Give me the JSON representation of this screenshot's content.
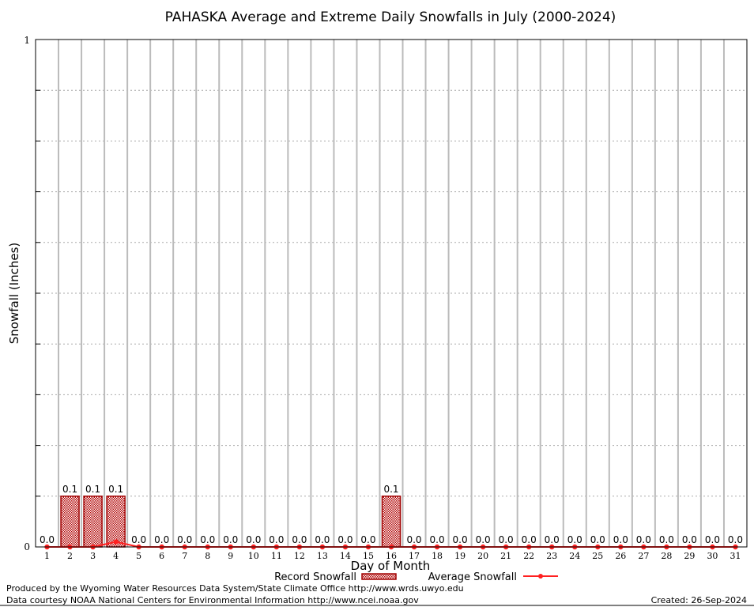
{
  "chart_data": {
    "type": "bar",
    "title": "PAHASKA Average and Extreme Daily Snowfalls in July (2000-2024)",
    "xlabel": "Day of Month",
    "ylabel": "Snowfall (Inches)",
    "ylim": [
      0,
      1
    ],
    "ytick_labels": [
      "0",
      "1"
    ],
    "grid": true,
    "categories": [
      "1",
      "2",
      "3",
      "4",
      "5",
      "6",
      "7",
      "8",
      "9",
      "10",
      "11",
      "12",
      "13",
      "14",
      "15",
      "16",
      "17",
      "18",
      "19",
      "20",
      "21",
      "22",
      "23",
      "24",
      "25",
      "26",
      "27",
      "28",
      "29",
      "30",
      "31"
    ],
    "series": [
      {
        "name": "Record Snowfall",
        "type": "bar",
        "color": "#a00000",
        "values": [
          0,
          0.1,
          0.1,
          0.1,
          0,
          0,
          0,
          0,
          0,
          0,
          0,
          0,
          0,
          0,
          0,
          0.1,
          0,
          0,
          0,
          0,
          0,
          0,
          0,
          0,
          0,
          0,
          0,
          0,
          0,
          0,
          0
        ],
        "labels": [
          "0.0",
          "0.1",
          "0.1",
          "0.1",
          "0.0",
          "0.0",
          "0.0",
          "0.0",
          "0.0",
          "0.0",
          "0.0",
          "0.0",
          "0.0",
          "0.0",
          "0.0",
          "0.1",
          "0.0",
          "0.0",
          "0.0",
          "0.0",
          "0.0",
          "0.0",
          "0.0",
          "0.0",
          "0.0",
          "0.0",
          "0.0",
          "0.0",
          "0.0",
          "0.0",
          "0.0"
        ]
      },
      {
        "name": "Average Snowfall",
        "type": "line",
        "color": "#ff2020",
        "values": [
          0,
          0,
          0,
          0.01,
          0,
          0,
          0,
          0,
          0,
          0,
          0,
          0,
          0,
          0,
          0,
          0,
          0,
          0,
          0,
          0,
          0,
          0,
          0,
          0,
          0,
          0,
          0,
          0,
          0,
          0,
          0
        ]
      }
    ],
    "legend": "bottom-center"
  },
  "footer": {
    "line1": "Produced by the Wyoming Water Resources Data System/State Climate Office http://www.wrds.uwyo.edu",
    "line2": "Data courtesy NOAA National Centers for Environmental Information http://www.ncei.noaa.gov",
    "created": "Created:  26-Sep-2024"
  }
}
